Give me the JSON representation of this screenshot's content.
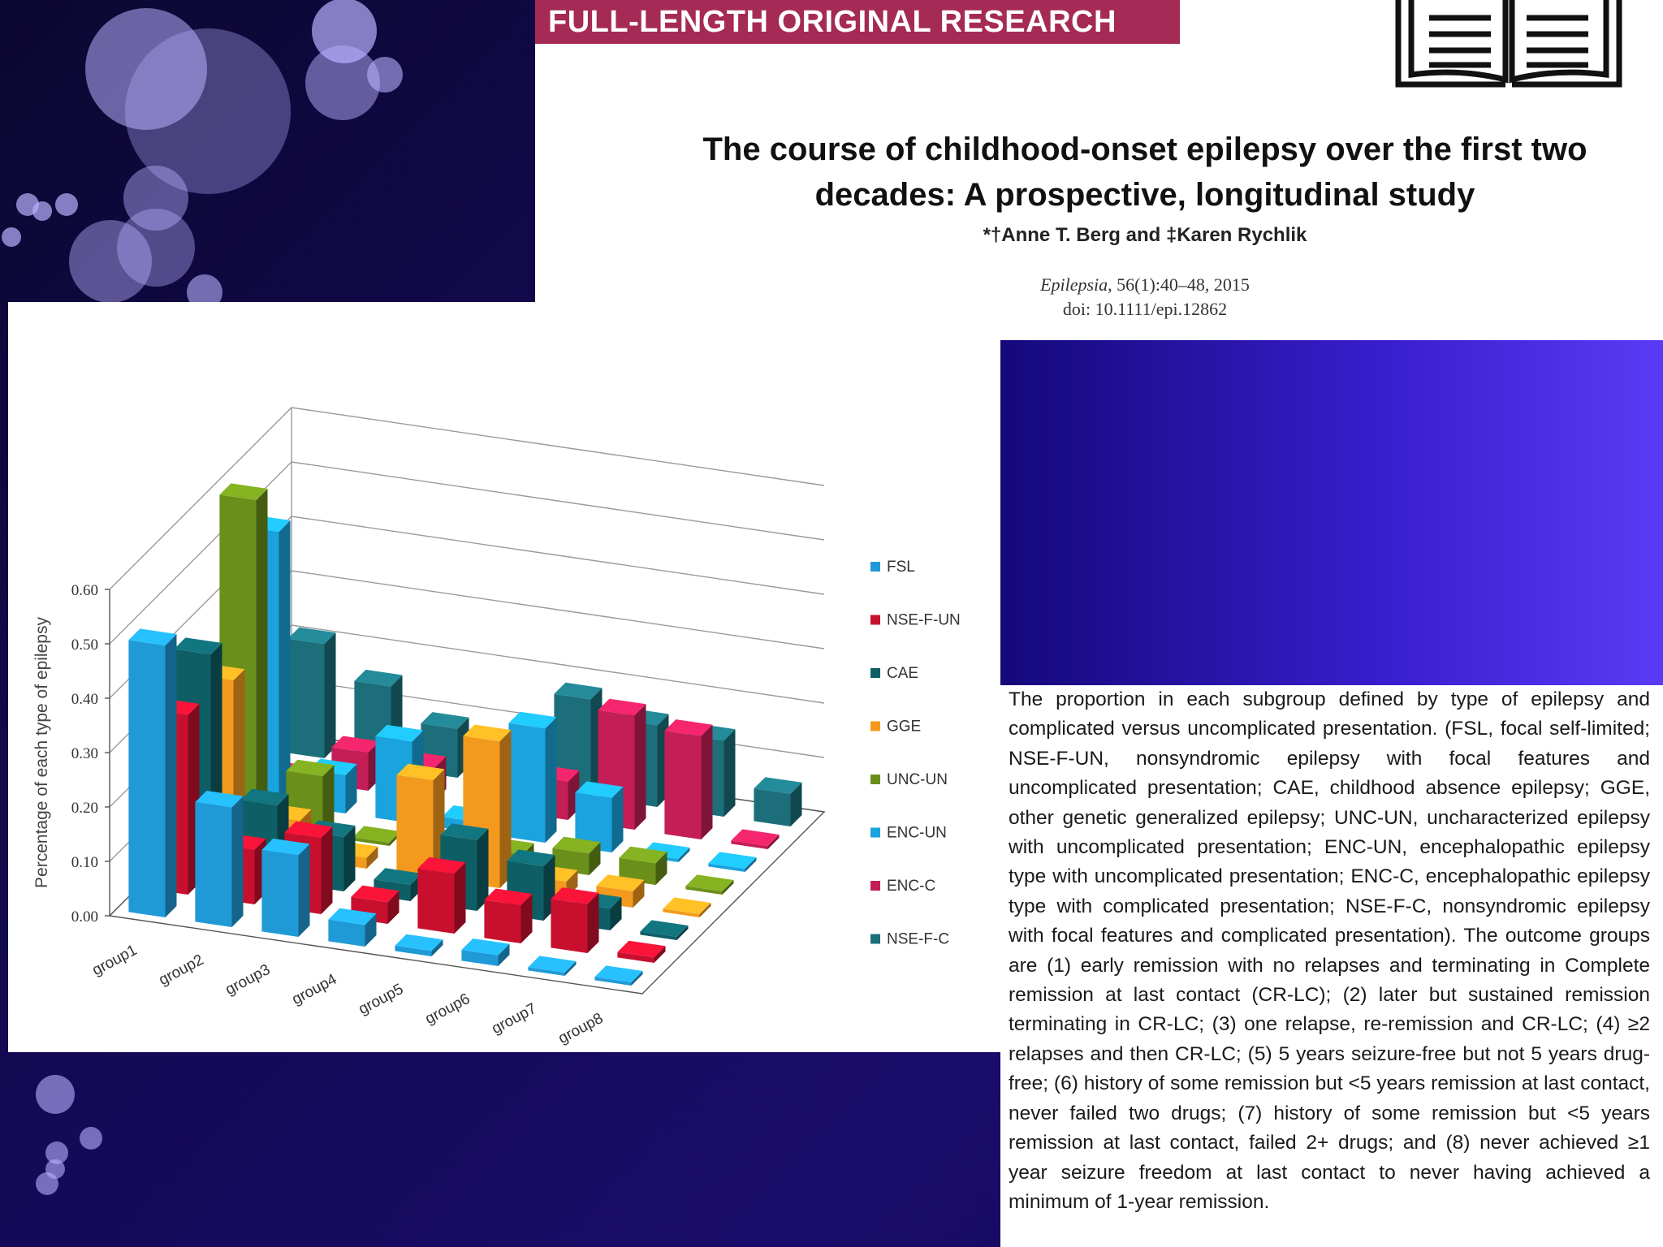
{
  "banner": "FULL-LENGTH ORIGINAL RESEARCH",
  "article": {
    "title_line1": "The course of childhood-onset epilepsy over the first two",
    "title_line2": "decades: A prospective, longitudinal study",
    "authors": "*†Anne T. Berg and ‡Karen Rychlik",
    "journal_name": "Epilepsia",
    "journal_ref": ", 56(1):40–48, 2015",
    "doi": "doi: 10.1111/epi.12862"
  },
  "caption": "The proportion in each subgroup defined by type of epilepsy and complicated versus uncomplicated presentation. (FSL, focal self-limited; NSE-F-UN, nonsyndromic epilepsy with focal features and uncomplicated presentation; CAE, childhood absence epilepsy; GGE, other genetic generalized epilepsy; UNC-UN, uncharacterized epilepsy with uncomplicated presentation; ENC-UN, encephalopathic epilepsy type with uncomplicated presentation; ENC-C, encephalopathic epilepsy type with complicated presentation; NSE-F-C, nonsyndromic epilepsy with focal features and complicated presentation). The outcome groups are (1) early remission with no relapses and terminating in Complete remission at last contact (CR-LC); (2) later but sustained remission terminating in CR-LC; (3) one relapse, re-remission and CR-LC; (4) ≥2 relapses and then CR-LC; (5) 5 years seizure-free but not 5 years drug-free; (6) history of some remission but <5 years remission at last contact, never failed two drugs; (7) history of some remission but <5 years remission at last contact, failed 2+ drugs; and (8) never achieved ≥1 year seizure freedom at last contact to never having achieved a minimum of 1-year remission.",
  "chart_data": {
    "type": "bar",
    "ylabel": "Percentage of each type of epilepsy",
    "ylim": [
      0,
      0.6
    ],
    "yticks": [
      "0.00",
      "0.10",
      "0.20",
      "0.30",
      "0.40",
      "0.50",
      "0.60"
    ],
    "categories": [
      "group1",
      "group2",
      "group3",
      "group4",
      "group5",
      "group6",
      "group7",
      "group8"
    ],
    "series": [
      {
        "name": "FSL",
        "color": "#1f9ad6",
        "values": [
          0.5,
          0.22,
          0.15,
          0.04,
          0.01,
          0.02,
          0.0,
          0.0
        ]
      },
      {
        "name": "NSE-F-UN",
        "color": "#c8102e",
        "values": [
          0.33,
          0.1,
          0.14,
          0.04,
          0.11,
          0.07,
          0.09,
          0.01
        ]
      },
      {
        "name": "CAE",
        "color": "#0e5e66",
        "values": [
          0.4,
          0.14,
          0.1,
          0.03,
          0.13,
          0.1,
          0.04,
          0.0
        ]
      },
      {
        "name": "GGE",
        "color": "#f39a1e",
        "values": [
          0.31,
          0.07,
          0.02,
          0.18,
          0.27,
          0.03,
          0.03,
          0.0
        ]
      },
      {
        "name": "UNC-UN",
        "color": "#6a8f1a",
        "values": [
          0.6,
          0.11,
          0.0,
          0.0,
          0.02,
          0.04,
          0.04,
          0.0
        ]
      },
      {
        "name": "ENC-UN",
        "color": "#1aa3dc",
        "values": [
          0.5,
          0.07,
          0.15,
          0.02,
          0.21,
          0.1,
          0.0,
          0.0
        ]
      },
      {
        "name": "ENC-C",
        "color": "#c41e57",
        "values": [
          0.0,
          0.07,
          0.06,
          0.0,
          0.07,
          0.21,
          0.19,
          0.0
        ]
      },
      {
        "name": "NSE-F-C",
        "color": "#1c6f7a",
        "values": [
          0.21,
          0.15,
          0.09,
          0.02,
          0.18,
          0.15,
          0.14,
          0.06
        ]
      }
    ]
  }
}
